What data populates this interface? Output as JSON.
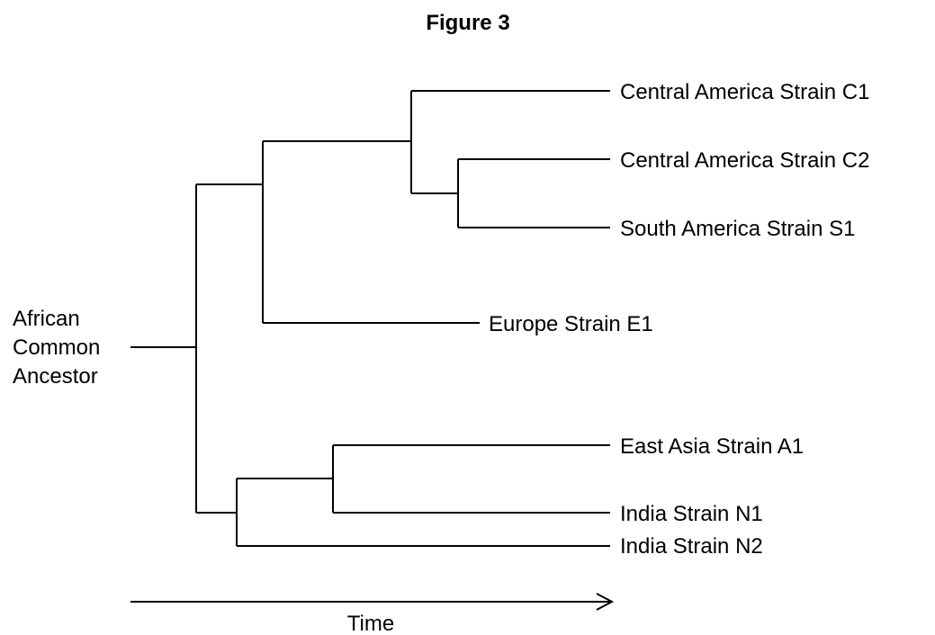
{
  "figure": {
    "title": "Figure 3"
  },
  "tree": {
    "root": {
      "label_lines": [
        "African",
        "Common",
        "Ancestor"
      ]
    },
    "leaves": [
      {
        "id": "c1",
        "label": "Central America Strain C1"
      },
      {
        "id": "c2",
        "label": "Central America Strain C2"
      },
      {
        "id": "s1",
        "label": "South America Strain S1"
      },
      {
        "id": "e1",
        "label": "Europe Strain E1"
      },
      {
        "id": "a1",
        "label": "East Asia Strain A1"
      },
      {
        "id": "n1",
        "label": "India Strain N1"
      },
      {
        "id": "n2",
        "label": "India Strain N2"
      }
    ]
  },
  "time_axis": {
    "label": "Time"
  },
  "colors": {
    "line": "#000000",
    "text": "#000000",
    "background": "#ffffff"
  }
}
